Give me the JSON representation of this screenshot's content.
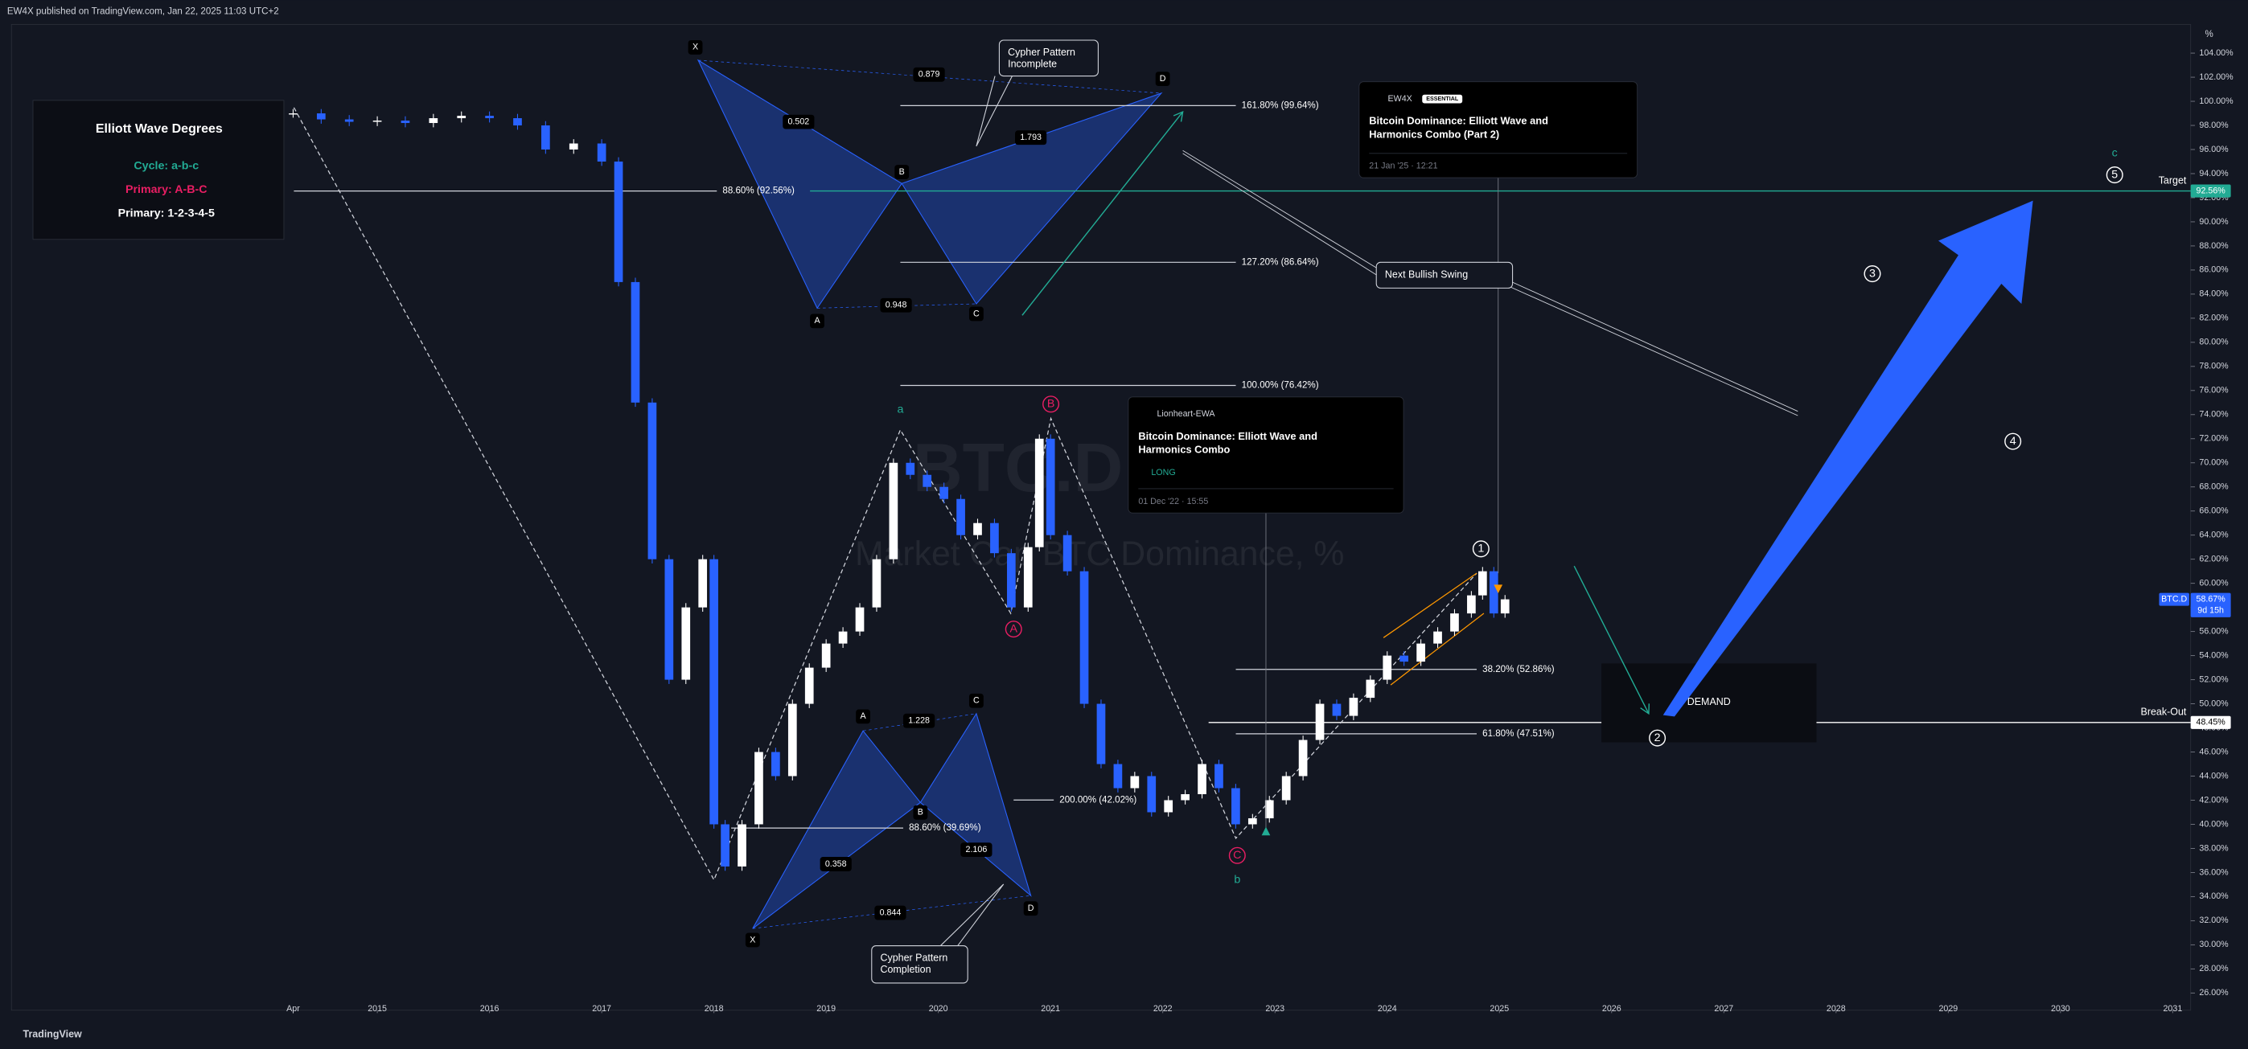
{
  "header": {
    "published": "EW4X published on TradingView.com, Jan 22, 2025 11:03 UTC+2",
    "footer": "TradingView"
  },
  "chart_data": {
    "type": "candlestick",
    "title": "BTC.D",
    "subtitle": "Market Cap BTC Dominance, %",
    "y_unit": "%",
    "x": [
      2014.25,
      2014.5,
      2014.75,
      2015.0,
      2015.25,
      2015.5,
      2015.75,
      2016.0,
      2016.25,
      2016.5,
      2016.75,
      2017.0,
      2017.15,
      2017.3,
      2017.45,
      2017.6,
      2017.75,
      2017.9,
      2018.0,
      2018.1,
      2018.25,
      2018.4,
      2018.55,
      2018.7,
      2018.85,
      2019.0,
      2019.15,
      2019.3,
      2019.45,
      2019.6,
      2019.75,
      2019.9,
      2020.05,
      2020.2,
      2020.35,
      2020.5,
      2020.65,
      2020.8,
      2020.9,
      2021.0,
      2021.15,
      2021.3,
      2021.45,
      2021.6,
      2021.75,
      2021.9,
      2022.05,
      2022.2,
      2022.35,
      2022.5,
      2022.65,
      2022.8,
      2022.95,
      2023.1,
      2023.25,
      2023.4,
      2023.55,
      2023.7,
      2023.85,
      2024.0,
      2024.15,
      2024.3,
      2024.45,
      2024.6,
      2024.75,
      2024.85,
      2024.95,
      2025.05
    ],
    "series": [
      {
        "name": "BTC.D",
        "color": "#2962ff",
        "values": [
          99.0,
          98.5,
          98.3,
          98.4,
          98.2,
          98.6,
          98.8,
          98.6,
          98.0,
          96.0,
          96.5,
          95.0,
          85.0,
          75.0,
          62.0,
          52.0,
          58.0,
          62.0,
          40.0,
          36.5,
          40.0,
          46.0,
          44.0,
          50.0,
          53.0,
          55.0,
          56.0,
          58.0,
          62.0,
          70.0,
          69.0,
          68.0,
          67.0,
          64.0,
          65.0,
          62.5,
          58.0,
          63.0,
          72.0,
          64.0,
          61.0,
          50.0,
          45.0,
          43.0,
          44.0,
          41.0,
          42.0,
          42.5,
          45.0,
          43.0,
          40.0,
          40.5,
          42.0,
          44.0,
          47.0,
          50.0,
          49.0,
          50.5,
          52.0,
          54.0,
          53.5,
          55.0,
          56.0,
          57.5,
          59.0,
          61.0,
          57.5,
          58.67
        ]
      }
    ],
    "up_color": "#ffffff",
    "xlim": [
      2011.74,
      2031.16
    ],
    "xticks": [
      {
        "value": 2014.25,
        "label": "Apr"
      },
      2015,
      2016,
      2017,
      2018,
      2019,
      2020,
      2021,
      2022,
      2023,
      2024,
      2025,
      2026,
      2027,
      2028,
      2029,
      2030,
      2031
    ],
    "ylim": [
      24.57,
      106.38
    ],
    "yticks": [
      {
        "value": 26,
        "label": "26.00%"
      },
      {
        "value": 28,
        "label": "28.00%"
      },
      {
        "value": 30,
        "label": "30.00%"
      },
      {
        "value": 32,
        "label": "32.00%"
      },
      {
        "value": 34,
        "label": "34.00%"
      },
      {
        "value": 36,
        "label": "36.00%"
      },
      {
        "value": 38,
        "label": "38.00%"
      },
      {
        "value": 40,
        "label": "40.00%"
      },
      {
        "value": 42,
        "label": "42.00%"
      },
      {
        "value": 44,
        "label": "44.00%"
      },
      {
        "value": 46,
        "label": "46.00%"
      },
      {
        "value": 48,
        "label": "48.00%"
      },
      {
        "value": 50,
        "label": "50.00%"
      },
      {
        "value": 52,
        "label": "52.00%"
      },
      {
        "value": 54,
        "label": "54.00%"
      },
      {
        "value": 56,
        "label": "56.00%"
      },
      {
        "value": 58,
        "label": "58.00%"
      },
      {
        "value": 60,
        "label": "60.00%"
      },
      {
        "value": 62,
        "label": "62.00%"
      },
      {
        "value": 64,
        "label": "64.00%"
      },
      {
        "value": 66,
        "label": "66.00%"
      },
      {
        "value": 68,
        "label": "68.00%"
      },
      {
        "value": 70,
        "label": "70.00%"
      },
      {
        "value": 72,
        "label": "72.00%"
      },
      {
        "value": 74,
        "label": "74.00%"
      },
      {
        "value": 76,
        "label": "76.00%"
      },
      {
        "value": 78,
        "label": "78.00%"
      },
      {
        "value": 80,
        "label": "80.00%"
      },
      {
        "value": 82,
        "label": "82.00%"
      },
      {
        "value": 84,
        "label": "84.00%"
      },
      {
        "value": 86,
        "label": "86.00%"
      },
      {
        "value": 88,
        "label": "88.00%"
      },
      {
        "value": 90,
        "label": "90.00%"
      },
      {
        "value": 92,
        "label": "92.00%"
      },
      {
        "value": 94,
        "label": "94.00%"
      },
      {
        "value": 96,
        "label": "96.00%"
      },
      {
        "value": 98,
        "label": "98.00%"
      },
      {
        "value": 100,
        "label": "100.00%"
      },
      {
        "value": 102,
        "label": "102.00%"
      },
      {
        "value": 104,
        "label": "104.00%"
      }
    ],
    "grid": false,
    "levels": [
      {
        "value": 99.64,
        "label": "161.80% (99.64%)"
      },
      {
        "value": 86.64,
        "label": "127.20% (86.64%)"
      },
      {
        "value": 76.42,
        "label": "100.00% (76.42%)"
      },
      {
        "value": 92.56,
        "label": "88.60% (92.56%)"
      },
      {
        "value": 52.86,
        "label": "38.20% (52.86%)"
      },
      {
        "value": 47.51,
        "label": "61.80% (47.51%)"
      },
      {
        "value": 42.02,
        "label": "200.00% (42.02%)"
      },
      {
        "value": 39.69,
        "label": "88.60% (39.69%)"
      }
    ],
    "lines": [
      {
        "value": 92.56,
        "label": "Target",
        "color": "#22ab94"
      },
      {
        "value": 48.45,
        "label": "Break-Out",
        "color": "#ffffff"
      }
    ],
    "price_tags": [
      {
        "value": 92.56,
        "label": "92.56%",
        "color": "#22ab94"
      },
      {
        "value": 58.67,
        "label": "58.67%",
        "countdown": "9d 15h",
        "color": "#2962ff"
      },
      {
        "value": 48.45,
        "label": "48.45%",
        "color": "#ffffff"
      }
    ],
    "legend_box": {
      "title": "Elliott Wave Degrees",
      "entries": [
        {
          "text": "Cycle: a-b-c",
          "color": "#22ab94"
        },
        {
          "text": "Primary: A-B-C",
          "color": "#e91e63"
        },
        {
          "text": "Primary: 1-2-3-4-5",
          "color": "#ffffff"
        }
      ]
    },
    "harmonics": [
      {
        "points": [
          "X",
          "A",
          "B",
          "C",
          "D"
        ],
        "ratios": [
          "0.879",
          "0.502",
          "1.793",
          "0.948"
        ],
        "note": "Cypher Pattern Incomplete"
      },
      {
        "points": [
          "X",
          "A",
          "B",
          "C",
          "D"
        ],
        "ratios": [
          "1.228",
          "0.358",
          "2.106",
          "0.844"
        ],
        "note": "Cypher Pattern Completion"
      }
    ],
    "waves": [
      {
        "text": "a",
        "color": "#22ab94"
      },
      {
        "text": "b",
        "color": "#22ab94"
      },
      {
        "text": "c",
        "color": "#22ab94"
      },
      {
        "text": "A",
        "color": "#e91e63"
      },
      {
        "text": "B",
        "color": "#e91e63"
      },
      {
        "text": "C",
        "color": "#e91e63"
      },
      {
        "text": "1",
        "color": "#ffffff"
      },
      {
        "text": "2",
        "color": "#ffffff"
      },
      {
        "text": "3",
        "color": "#ffffff"
      },
      {
        "text": "4",
        "color": "#ffffff"
      },
      {
        "text": "5",
        "color": "#ffffff"
      }
    ],
    "callouts": [
      "Next Bullish Swing",
      "DEMAND"
    ],
    "ideas": [
      {
        "author": "EW4X",
        "badge": "ESSENTIAL",
        "title": "Bitcoin Dominance: Elliott Wave and Harmonics Combo (Part 2)",
        "date": "21 Jan '25 · 12:21"
      },
      {
        "author": "Lionheart-EWA",
        "title": "Bitcoin Dominance: Elliott Wave and Harmonics Combo",
        "tag": "LONG",
        "date": "01 Dec '22 · 15:55"
      }
    ]
  }
}
